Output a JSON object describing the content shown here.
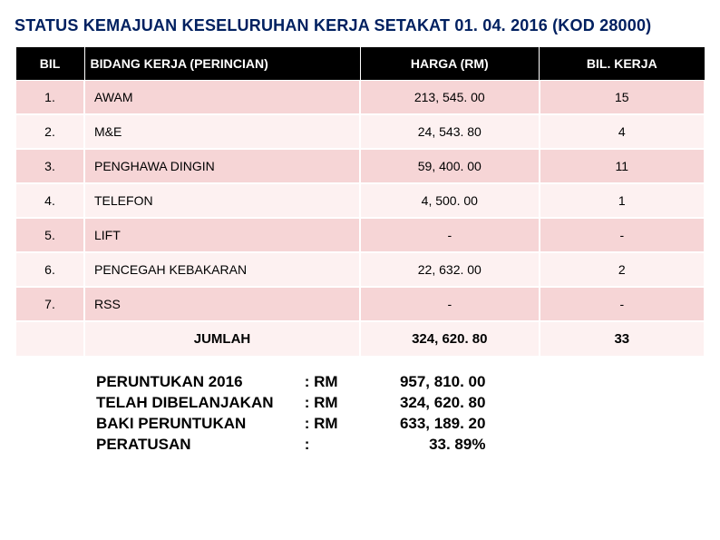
{
  "title": "STATUS  KEMAJUAN KESELURUHAN KERJA SETAKAT 01. 04. 2016 (KOD 28000)",
  "table": {
    "headers": {
      "bil": "BIL",
      "bidang": "BIDANG KERJA (PERINCIAN)",
      "harga": "HARGA (RM)",
      "bilkerja": "BIL. KERJA"
    },
    "rows": [
      {
        "bil": "1.",
        "bidang": "AWAM",
        "harga": "213, 545. 00",
        "bilkerja": "15"
      },
      {
        "bil": "2.",
        "bidang": "M&E",
        "harga": "24, 543. 80",
        "bilkerja": "4"
      },
      {
        "bil": "3.",
        "bidang": "PENGHAWA DINGIN",
        "harga": "59, 400. 00",
        "bilkerja": "11"
      },
      {
        "bil": "4.",
        "bidang": "TELEFON",
        "harga": "4, 500. 00",
        "bilkerja": "1"
      },
      {
        "bil": "5.",
        "bidang": "LIFT",
        "harga": "-",
        "bilkerja": "-"
      },
      {
        "bil": "6.",
        "bidang": "PENCEGAH KEBAKARAN",
        "harga": "22, 632. 00",
        "bilkerja": "2"
      },
      {
        "bil": "7.",
        "bidang": "RSS",
        "harga": "-",
        "bilkerja": "-"
      }
    ],
    "total": {
      "label": "JUMLAH",
      "harga": "324, 620. 80",
      "bilkerja": "33"
    }
  },
  "summary": [
    {
      "label": "PERUNTUKAN 2016",
      "colon": ": RM",
      "value": "957, 810. 00"
    },
    {
      "label": "TELAH DIBELANJAKAN",
      "colon": ": RM",
      "value": "324, 620. 80"
    },
    {
      "label": "BAKI PERUNTUKAN",
      "colon": ": RM",
      "value": "633, 189. 20"
    },
    {
      "label": "PERATUSAN",
      "colon": ":",
      "value": "33. 89%"
    }
  ],
  "colors": {
    "title": "#002060",
    "header_bg": "#000000",
    "header_fg": "#ffffff",
    "row_odd": "#f6d5d6",
    "row_even": "#fdf1f1"
  }
}
